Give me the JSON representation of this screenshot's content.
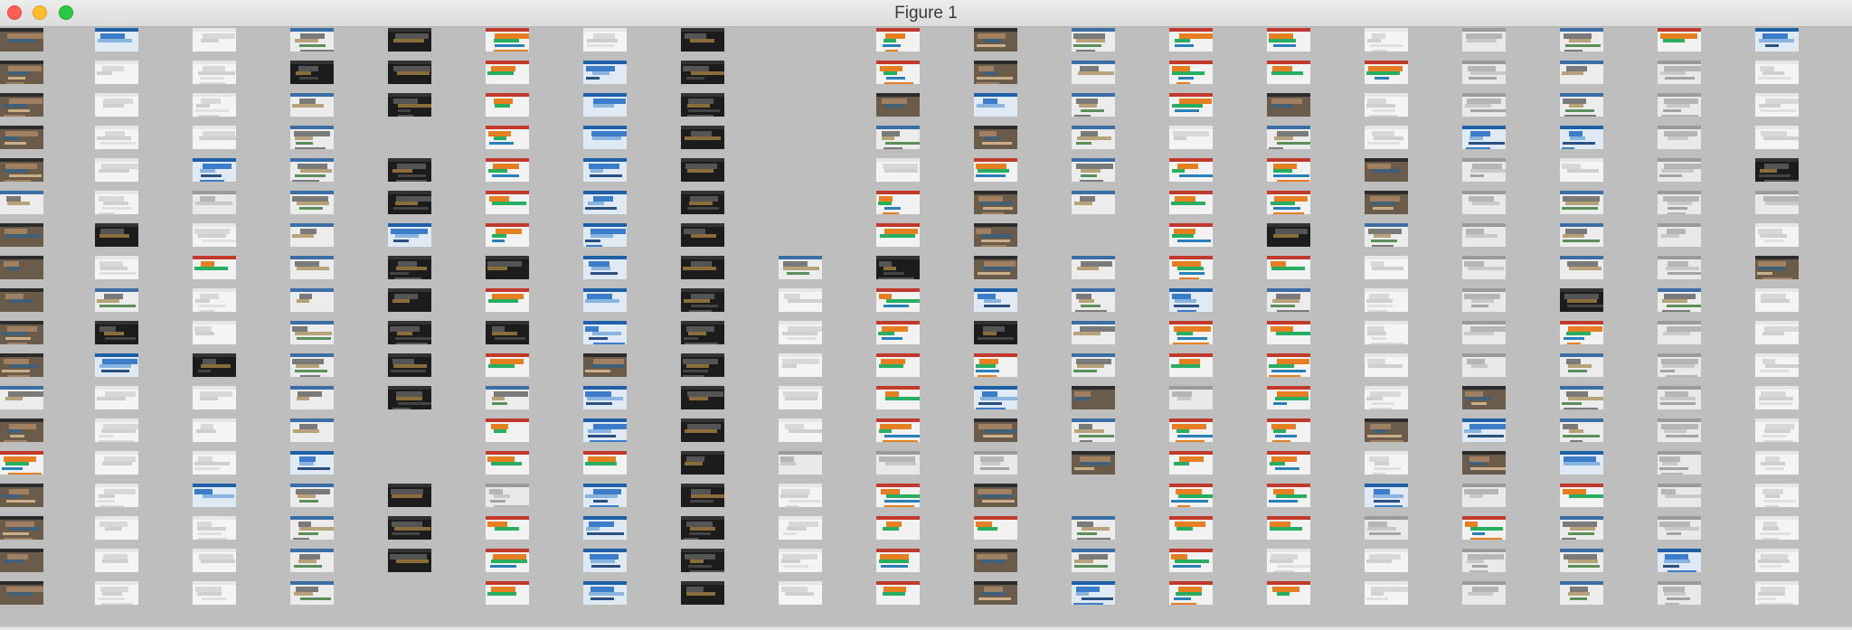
{
  "window": {
    "title": "Figure 1"
  },
  "colors": {
    "background": "#bebebe",
    "titlebar": "#e3e3e3",
    "close": "#fd5f57",
    "minimize": "#febc2e",
    "zoom": "#29c840"
  },
  "icons": {
    "close": "close-circle-icon",
    "minimize": "minimize-circle-icon",
    "zoom": "zoom-circle-icon"
  },
  "grid": {
    "columns": 19,
    "rows": 18,
    "missing_cells": [
      [
        0,
        8
      ],
      [
        1,
        8
      ],
      [
        2,
        8
      ],
      [
        3,
        8
      ],
      [
        4,
        8
      ],
      [
        5,
        8
      ],
      [
        6,
        8
      ],
      [
        3,
        4
      ],
      [
        12,
        4
      ],
      [
        13,
        4
      ],
      [
        17,
        4
      ],
      [
        18,
        8
      ],
      [
        6,
        11
      ],
      [
        14,
        11
      ]
    ],
    "themes": [
      "dark",
      "white",
      "colorful",
      "light-grey",
      "mixed",
      "blue",
      "photo"
    ]
  }
}
